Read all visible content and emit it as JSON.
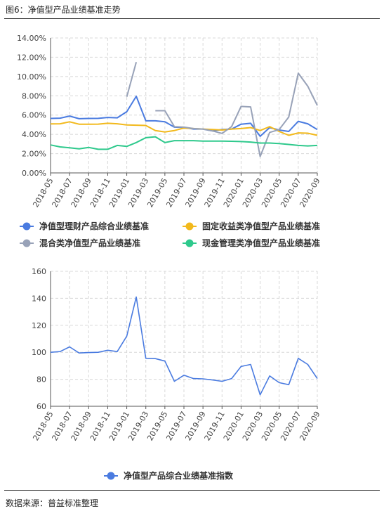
{
  "figure_title": "图6：净值型产品业绩基准走势",
  "source": "数据来源：普益标准整理",
  "chart_data": [
    {
      "type": "line",
      "x": [
        "2018-05",
        "2018-06",
        "2018-07",
        "2018-08",
        "2018-09",
        "2018-10",
        "2018-11",
        "2018-12",
        "2019-01",
        "2019-02",
        "2019-03",
        "2019-04",
        "2019-05",
        "2019-06",
        "2019-07",
        "2019-08",
        "2019-09",
        "2019-10",
        "2019-11",
        "2019-12",
        "2020-01",
        "2020-02",
        "2020-03",
        "2020-04",
        "2020-05",
        "2020-06",
        "2020-07",
        "2020-08",
        "2020-09"
      ],
      "xticks": [
        "2018-05",
        "2018-07",
        "2018-09",
        "2018-11",
        "2019-01",
        "2019-03",
        "2019-05",
        "2019-07",
        "2019-09",
        "2019-11",
        "2020-01",
        "2020-03",
        "2020-05",
        "2020-07",
        "2020-09"
      ],
      "yticks": [
        "0.00%",
        "2.00%",
        "4.00%",
        "6.00%",
        "8.00%",
        "10.00%",
        "12.00%",
        "14.00%"
      ],
      "ylim": [
        0,
        14
      ],
      "grid": true,
      "legend_position": "bottom",
      "series": [
        {
          "name": "净值型理财产品综合业绩基准",
          "color": "#4a7be0",
          "values": [
            5.65,
            5.68,
            5.9,
            5.62,
            5.65,
            5.66,
            5.75,
            5.72,
            6.35,
            7.95,
            5.4,
            5.4,
            5.3,
            4.75,
            4.72,
            4.55,
            4.55,
            4.35,
            4.5,
            4.55,
            5.05,
            5.15,
            3.8,
            4.7,
            4.45,
            4.3,
            5.35,
            5.1,
            4.5
          ]
        },
        {
          "name": "固定收益类净值型产品业绩基准",
          "color": "#f2b91c",
          "values": [
            5.08,
            5.1,
            5.3,
            5.05,
            5.05,
            5.06,
            5.15,
            5.1,
            4.98,
            4.95,
            4.92,
            4.4,
            4.25,
            4.4,
            4.65,
            4.6,
            4.55,
            4.5,
            4.45,
            4.55,
            4.6,
            4.7,
            4.4,
            4.8,
            4.3,
            3.9,
            4.15,
            4.12,
            3.9
          ]
        },
        {
          "name": "混合类净值型产品业绩基准",
          "color": "#98a2b8",
          "values": [
            null,
            null,
            null,
            null,
            null,
            null,
            null,
            null,
            7.9,
            11.5,
            null,
            6.45,
            6.45,
            4.8,
            4.75,
            4.6,
            4.55,
            4.35,
            4.1,
            4.8,
            6.9,
            6.85,
            1.7,
            4.2,
            4.5,
            5.8,
            10.35,
            9.0,
            7.0
          ]
        },
        {
          "name": "现金管理类净值型产品业绩基准",
          "color": "#2ec98c",
          "values": [
            2.9,
            2.7,
            2.6,
            2.5,
            2.65,
            2.45,
            2.45,
            2.85,
            2.75,
            3.15,
            3.65,
            3.75,
            3.15,
            3.35,
            3.35,
            3.35,
            3.3,
            3.3,
            3.3,
            3.28,
            3.25,
            3.2,
            3.1,
            3.1,
            3.05,
            2.95,
            2.85,
            2.8,
            2.85
          ]
        }
      ]
    },
    {
      "type": "line",
      "x": [
        "2018-05",
        "2018-06",
        "2018-07",
        "2018-08",
        "2018-09",
        "2018-10",
        "2018-11",
        "2018-12",
        "2019-01",
        "2019-02",
        "2019-03",
        "2019-04",
        "2019-05",
        "2019-06",
        "2019-07",
        "2019-08",
        "2019-09",
        "2019-10",
        "2019-11",
        "2019-12",
        "2020-01",
        "2020-02",
        "2020-03",
        "2020-04",
        "2020-05",
        "2020-06",
        "2020-07",
        "2020-08",
        "2020-09"
      ],
      "xticks": [
        "2018-05",
        "2018-07",
        "2018-09",
        "2018-11",
        "2019-01",
        "2019-03",
        "2019-05",
        "2019-07",
        "2019-09",
        "2019-11",
        "2020-01",
        "2020-03",
        "2020-05",
        "2020-07",
        "2020-09"
      ],
      "yticks": [
        "60",
        "80",
        "100",
        "120",
        "140",
        "160"
      ],
      "ylim": [
        60,
        160
      ],
      "grid": true,
      "legend_position": "bottom",
      "series": [
        {
          "name": "净值型产品综合业绩基准指数",
          "color": "#4a7be0",
          "values": [
            100,
            100.5,
            104,
            99.5,
            99.8,
            100,
            101.5,
            100.5,
            112,
            141,
            95.5,
            95.3,
            93.5,
            78.5,
            83,
            80.5,
            80.3,
            79.5,
            78.5,
            80.5,
            89.5,
            91,
            68.5,
            82.5,
            77.5,
            76,
            95.5,
            91,
            80.5
          ]
        }
      ]
    }
  ]
}
